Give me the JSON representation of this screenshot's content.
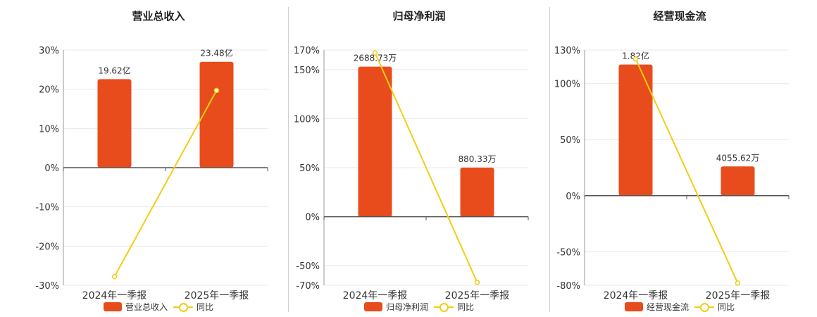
{
  "colors": {
    "bar": "#e84c1c",
    "line": "#f2cd15",
    "axis": "#555555",
    "grid": "#e8e8e8"
  },
  "chart_data": [
    {
      "type": "bar",
      "title": "营业总收入",
      "categories": [
        "2024年一季报",
        "2025年一季报"
      ],
      "bar_series": {
        "name": "营业总收入",
        "values": [
          19.62,
          23.48
        ],
        "labels": [
          "19.62亿",
          "23.48亿"
        ]
      },
      "line_series": {
        "name": "同比",
        "values": [
          -27.8,
          19.7
        ]
      },
      "y_ticks": [
        "30%",
        "20%",
        "10%",
        "0%",
        "-10%",
        "-20%",
        "-30%"
      ],
      "ylim": [
        -30,
        30
      ],
      "grid": true,
      "legend": "bottom"
    },
    {
      "type": "bar",
      "title": "归母净利润",
      "categories": [
        "2024年一季报",
        "2025年一季报"
      ],
      "bar_series": {
        "name": "归母净利润",
        "values": [
          2688.73,
          880.33
        ],
        "labels": [
          "2688.73万",
          "880.33万"
        ]
      },
      "line_series": {
        "name": "同比",
        "values": [
          167,
          -67
        ]
      },
      "y_ticks": [
        "170%",
        "150%",
        "100%",
        "50%",
        "0%",
        "-50%",
        "-70%"
      ],
      "ylim": [
        -70,
        170
      ],
      "grid": true,
      "legend": "bottom"
    },
    {
      "type": "bar",
      "title": "经营现金流",
      "categories": [
        "2024年一季报",
        "2025年一季报"
      ],
      "bar_series": {
        "name": "经营现金流",
        "values": [
          1.82,
          0.405562
        ],
        "labels": [
          "1.82亿",
          "4055.62万"
        ]
      },
      "line_series": {
        "name": "同比",
        "values": [
          122,
          -78
        ]
      },
      "y_ticks": [
        "130%",
        "100%",
        "50%",
        "0%",
        "-50%",
        "-80%"
      ],
      "ylim": [
        -80,
        130
      ],
      "grid": true,
      "legend": "bottom"
    }
  ]
}
